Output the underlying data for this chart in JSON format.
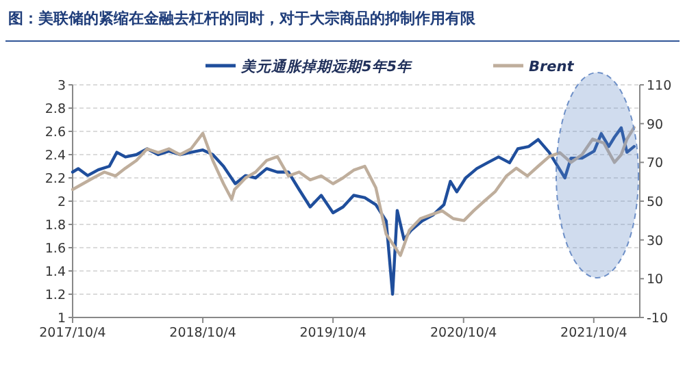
{
  "chart_data": {
    "type": "line",
    "title": "图：美联储的紧缩在金融去杠杆的同时，对于大宗商品的抑制作用有限",
    "xlim": [
      "2017-10-04",
      "2022-02-10"
    ],
    "xticks": [
      {
        "value": "2017-10-04",
        "label": "2017/10/4"
      },
      {
        "value": "2018-10-04",
        "label": "2018/10/4"
      },
      {
        "value": "2019-10-04",
        "label": "2019/10/4"
      },
      {
        "value": "2020-10-04",
        "label": "2020/10/4"
      },
      {
        "value": "2021-10-04",
        "label": "2021/10/4"
      }
    ],
    "ylim": [
      1,
      3
    ],
    "yticks": [
      1,
      1.2,
      1.4,
      1.6,
      1.8,
      2,
      2.2,
      2.4,
      2.6,
      2.8,
      3
    ],
    "y2lim": [
      -10,
      110
    ],
    "y2ticks": [
      -10,
      10,
      30,
      50,
      70,
      90,
      110
    ],
    "grid": "y",
    "legend": "top",
    "marker": "none",
    "line_style": "solid",
    "series": [
      {
        "name": "美元通胀掉期远期5年5年",
        "color": "#1f4e9c",
        "x": [
          "2017-10-04",
          "2017-10-20",
          "2017-11-15",
          "2017-12-15",
          "2018-01-15",
          "2018-02-05",
          "2018-03-01",
          "2018-04-01",
          "2018-05-01",
          "2018-06-01",
          "2018-07-01",
          "2018-08-01",
          "2018-09-01",
          "2018-10-04",
          "2018-11-01",
          "2018-12-01",
          "2019-01-03",
          "2019-02-01",
          "2019-03-01",
          "2019-04-01",
          "2019-05-01",
          "2019-06-01",
          "2019-07-01",
          "2019-08-01",
          "2019-09-01",
          "2019-10-04",
          "2019-11-01",
          "2019-12-01",
          "2020-01-01",
          "2020-02-01",
          "2020-03-01",
          "2020-03-19",
          "2020-04-01",
          "2020-04-20",
          "2020-05-10",
          "2020-06-10",
          "2020-07-10",
          "2020-08-10",
          "2020-08-28",
          "2020-09-15",
          "2020-10-10",
          "2020-11-10",
          "2020-12-10",
          "2021-01-10",
          "2021-02-10",
          "2021-03-05",
          "2021-04-05",
          "2021-05-01",
          "2021-06-01",
          "2021-07-15",
          "2021-08-01",
          "2021-09-01",
          "2021-10-05",
          "2021-10-25",
          "2021-11-15",
          "2021-12-01",
          "2021-12-20",
          "2022-01-05",
          "2022-01-25"
        ],
        "values": [
          2.25,
          2.28,
          2.22,
          2.27,
          2.3,
          2.42,
          2.38,
          2.4,
          2.45,
          2.4,
          2.43,
          2.4,
          2.42,
          2.44,
          2.4,
          2.3,
          2.15,
          2.22,
          2.2,
          2.28,
          2.25,
          2.25,
          2.1,
          1.95,
          2.05,
          1.9,
          1.95,
          2.05,
          2.03,
          1.97,
          1.83,
          1.2,
          1.92,
          1.67,
          1.75,
          1.83,
          1.88,
          1.97,
          2.17,
          2.08,
          2.2,
          2.28,
          2.33,
          2.38,
          2.33,
          2.45,
          2.47,
          2.53,
          2.42,
          2.2,
          2.37,
          2.37,
          2.43,
          2.58,
          2.47,
          2.55,
          2.63,
          2.42,
          2.47
        ]
      },
      {
        "name": "Brent",
        "color": "#bfae9c",
        "axis": "y2",
        "x": [
          "2017-10-04",
          "2017-12-01",
          "2018-01-01",
          "2018-02-01",
          "2018-03-01",
          "2018-04-01",
          "2018-05-01",
          "2018-06-01",
          "2018-07-01",
          "2018-08-01",
          "2018-09-01",
          "2018-10-04",
          "2018-11-01",
          "2018-12-01",
          "2018-12-24",
          "2019-01-01",
          "2019-02-01",
          "2019-03-01",
          "2019-04-01",
          "2019-05-01",
          "2019-06-01",
          "2019-07-01",
          "2019-08-01",
          "2019-09-01",
          "2019-10-04",
          "2019-11-01",
          "2019-12-01",
          "2020-01-01",
          "2020-02-01",
          "2020-03-01",
          "2020-04-10",
          "2020-05-05",
          "2020-06-05",
          "2020-07-05",
          "2020-08-05",
          "2020-09-05",
          "2020-10-05",
          "2020-11-01",
          "2020-12-01",
          "2021-01-01",
          "2021-02-01",
          "2021-03-01",
          "2021-04-01",
          "2021-05-01",
          "2021-06-01",
          "2021-07-01",
          "2021-08-01",
          "2021-09-01",
          "2021-10-01",
          "2021-11-01",
          "2021-12-01",
          "2021-12-20",
          "2022-01-05",
          "2022-01-25"
        ],
        "values": [
          56,
          62,
          65,
          63,
          67,
          71,
          77,
          75,
          77,
          74,
          77,
          85,
          71,
          59,
          51,
          56,
          62,
          65,
          71,
          73,
          63,
          65,
          61,
          63,
          59,
          62,
          66,
          68,
          57,
          33,
          22,
          35,
          41,
          43,
          45,
          41,
          40,
          45,
          50,
          55,
          63,
          67,
          63,
          68,
          73,
          75,
          70,
          74,
          82,
          80,
          70,
          74,
          82,
          88
        ]
      }
    ]
  }
}
